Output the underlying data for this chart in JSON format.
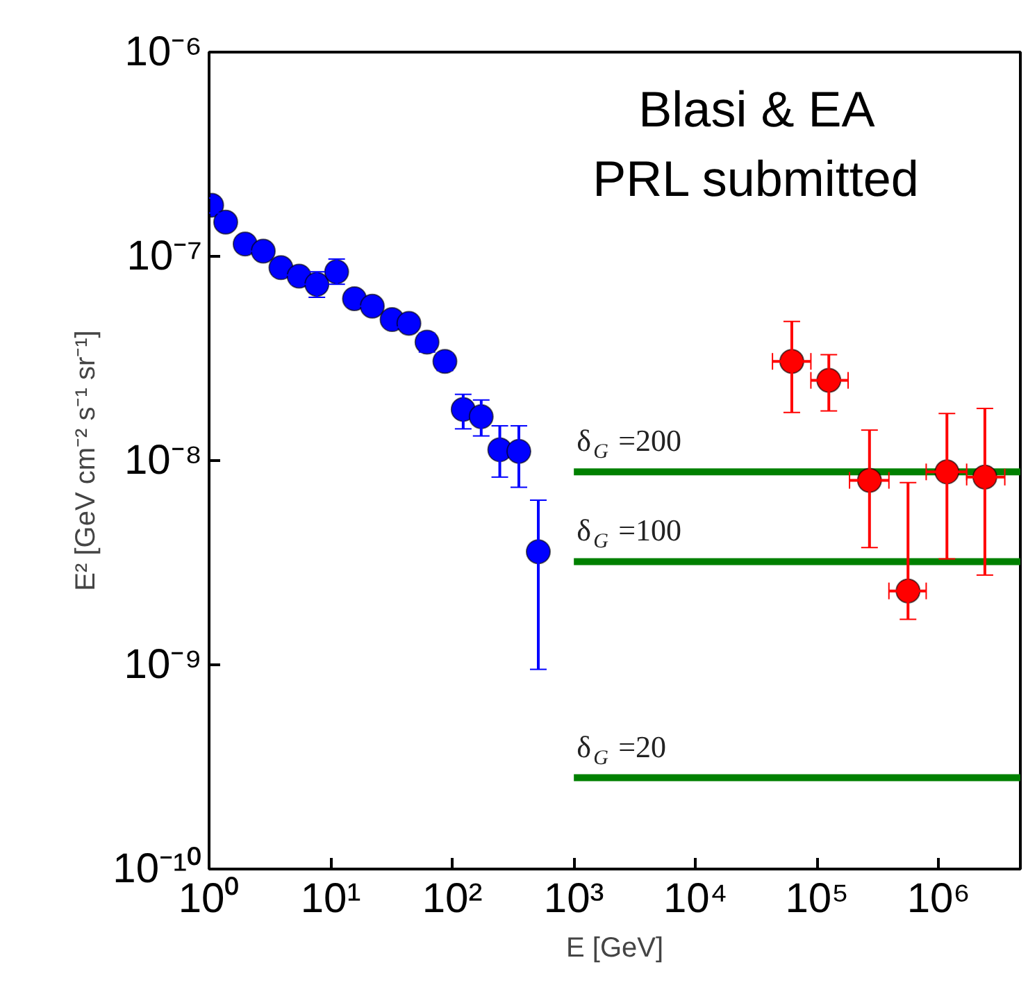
{
  "chart_data": {
    "type": "scatter",
    "xlabel": "E [GeV]",
    "ylabel": "E² [GeV cm⁻² s⁻¹ sr⁻¹]",
    "annotations": [
      "Blasi & EA",
      "PRL submitted"
    ],
    "xlim": [
      1,
      4700000
    ],
    "ylim": [
      1e-10,
      1e-06
    ],
    "xticks": [
      {
        "value": 1,
        "label": "10⁰"
      },
      {
        "value": 10,
        "label": "10¹"
      },
      {
        "value": 100,
        "label": "10²"
      },
      {
        "value": 1000,
        "label": "10³"
      },
      {
        "value": 10000,
        "label": "10⁴"
      },
      {
        "value": 100000,
        "label": "10⁵"
      },
      {
        "value": 1000000,
        "label": "10⁶"
      }
    ],
    "yticks": [
      {
        "value": 1e-10,
        "label": "10⁻¹⁰"
      },
      {
        "value": 1e-09,
        "label": "10⁻⁹"
      },
      {
        "value": 1e-08,
        "label": "10⁻⁸"
      },
      {
        "value": 1e-07,
        "label": "10⁻⁷"
      },
      {
        "value": 1e-06,
        "label": "10⁻⁶"
      }
    ],
    "log": "xy",
    "grid": false,
    "legend": false,
    "marker": "circle",
    "series": [
      {
        "color": "#0000ff",
        "x": [
          1.05,
          1.37,
          1.98,
          2.79,
          3.9,
          5.5,
          7.7,
          11.2,
          15.7,
          22,
          32,
          44,
          62,
          87,
          123,
          173,
          246,
          353,
          510
        ],
        "values": [
          1.78e-07,
          1.47e-07,
          1.15e-07,
          1.06e-07,
          8.8e-08,
          8e-08,
          7.3e-08,
          8.4e-08,
          6.2e-08,
          5.7e-08,
          4.9e-08,
          4.7e-08,
          3.8e-08,
          3.06e-08,
          1.78e-08,
          1.64e-08,
          1.13e-08,
          1.11e-08,
          3.58e-09
        ],
        "errors": [
          1.5e-08,
          1.1e-08,
          9e-09,
          8e-09,
          7e-09,
          7e-09,
          [
            6.3e-08,
            8.4e-08
          ],
          [
            7.3e-08,
            9.7e-08
          ],
          5e-09,
          4e-09,
          4e-09,
          3e-09,
          4e-09,
          3e-09,
          [
            1.43e-08,
            2.11e-08
          ],
          [
            1.32e-08,
            1.98e-08
          ],
          [
            8.3e-09,
            1.48e-08
          ],
          [
            7.4e-09,
            1.48e-08
          ],
          [
            9.5e-10,
            6.4e-09
          ]
        ]
      },
      {
        "color": "#ff0000",
        "x": [
          62000,
          125000,
          270000,
          560000,
          1170000,
          2400000
        ],
        "values": [
          3.06e-08,
          2.47e-08,
          8e-09,
          2.3e-09,
          8.8e-09,
          8.3e-09
        ],
        "errors": [
          [
            1.72e-08,
            4.8e-08
          ],
          [
            1.75e-08,
            3.3e-08
          ],
          [
            3.75e-09,
            1.41e-08
          ],
          [
            1.67e-09,
            7.8e-09
          ],
          [
            3.3e-09,
            1.7e-08
          ],
          [
            2.75e-09,
            1.8e-08
          ]
        ],
        "xerrors": [
          [
            43000,
            89000
          ],
          [
            89000,
            180000
          ],
          [
            185000,
            390000
          ],
          [
            390000,
            790000
          ],
          [
            790000,
            1700000
          ],
          [
            1700000,
            3500000
          ]
        ]
      },
      {
        "type": "line",
        "marker": "none",
        "name": "δ$_{G}$ =200",
        "color": "#008000",
        "x": [
          1000,
          4700000
        ],
        "values": [
          8.8e-09,
          8.8e-09
        ]
      },
      {
        "type": "line",
        "marker": "none",
        "name": "δ$_{G}$ =100",
        "color": "#008000",
        "x": [
          1000,
          4700000
        ],
        "values": [
          3.2e-09,
          3.2e-09
        ]
      },
      {
        "type": "line",
        "marker": "none",
        "name": "δ$_{G}$ =20",
        "color": "#008000",
        "x": [
          1000,
          4700000
        ],
        "values": [
          2.8e-10,
          2.8e-10
        ]
      }
    ]
  }
}
